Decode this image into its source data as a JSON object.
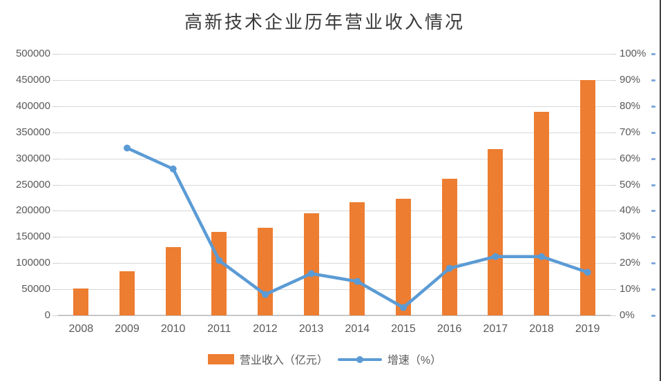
{
  "chart_data": {
    "type": "bar+line",
    "title": "高新技术企业历年营业收入情况",
    "categories": [
      "2008",
      "2009",
      "2010",
      "2011",
      "2012",
      "2013",
      "2014",
      "2015",
      "2016",
      "2017",
      "2018",
      "2019"
    ],
    "series": [
      {
        "name": "营业收入（亿元）",
        "type": "bar",
        "axis": "left",
        "color": "#ED7D31",
        "values": [
          52000,
          85000,
          131000,
          159000,
          168000,
          195000,
          217000,
          223000,
          261000,
          318000,
          389000,
          450000
        ]
      },
      {
        "name": "增速（%）",
        "type": "line",
        "axis": "right",
        "color": "#5B9BD5",
        "values": [
          null,
          64,
          56,
          21,
          8,
          16,
          13,
          3,
          18,
          22.5,
          22.5,
          16.5
        ]
      }
    ],
    "left_axis": {
      "min": 0,
      "max": 500000,
      "step": 50000,
      "tick_labels": [
        "0",
        "50000",
        "100000",
        "150000",
        "200000",
        "250000",
        "300000",
        "350000",
        "400000",
        "450000",
        "500000"
      ]
    },
    "right_axis": {
      "min": 0,
      "max": 100,
      "step": 10,
      "tick_labels": [
        "0%",
        "10%",
        "20%",
        "30%",
        "40%",
        "50%",
        "60%",
        "70%",
        "80%",
        "90%",
        "100%"
      ]
    },
    "grid": true,
    "legend_position": "bottom",
    "colors": {
      "gridline": "#d9d9d9",
      "axis_line": "#c6c6c6",
      "tick": "#cfcfcf",
      "label": "#595959",
      "title": "#3a3a3a"
    }
  },
  "legend": {
    "items": [
      {
        "label": "营业收入（亿元）",
        "swatch": "bar"
      },
      {
        "label": "增速（%）",
        "swatch": "line"
      }
    ]
  },
  "decor": {
    "right_border_color": "#3f3f3f",
    "edge_tick_color": "#7fa8dc"
  }
}
